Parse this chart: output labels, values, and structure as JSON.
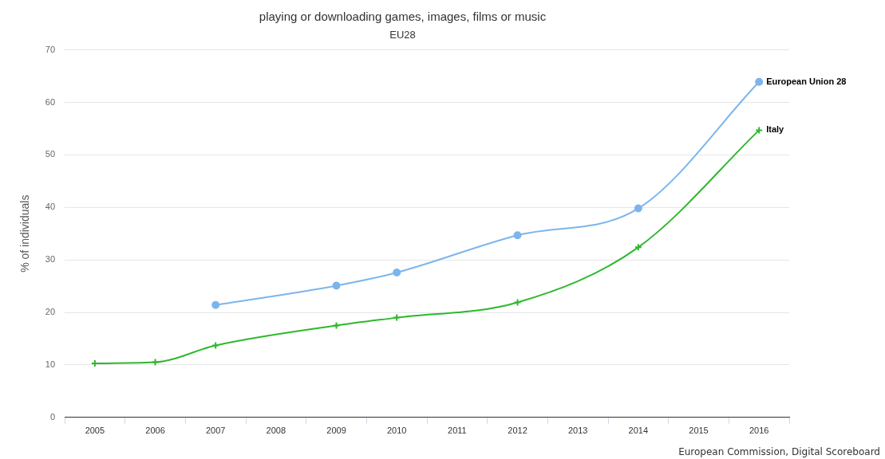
{
  "chart_data": {
    "type": "line",
    "title": "playing or downloading games, images, films or music",
    "subtitle": "EU28",
    "ylabel": "% of individuals",
    "categories": [
      "2005",
      "2006",
      "2007",
      "2008",
      "2009",
      "2010",
      "2011",
      "2012",
      "2013",
      "2014",
      "2015",
      "2016"
    ],
    "series": [
      {
        "name": "European Union 28",
        "color": "#7cb5ec",
        "marker": "circle",
        "values": [
          null,
          null,
          21.4,
          null,
          25.1,
          27.6,
          null,
          34.7,
          null,
          39.8,
          null,
          63.9
        ]
      },
      {
        "name": "Italy",
        "color": "#2eb82e",
        "marker": "cross",
        "values": [
          10.3,
          10.5,
          13.7,
          null,
          17.5,
          19.0,
          null,
          21.9,
          null,
          32.4,
          null,
          54.7
        ]
      }
    ],
    "ylim": [
      0,
      70
    ],
    "yticks": [
      0,
      10,
      20,
      30,
      40,
      50,
      60,
      70
    ],
    "grid": "y",
    "legend": false,
    "annotations": [
      "European Commission, Digital Scoreboard"
    ]
  }
}
